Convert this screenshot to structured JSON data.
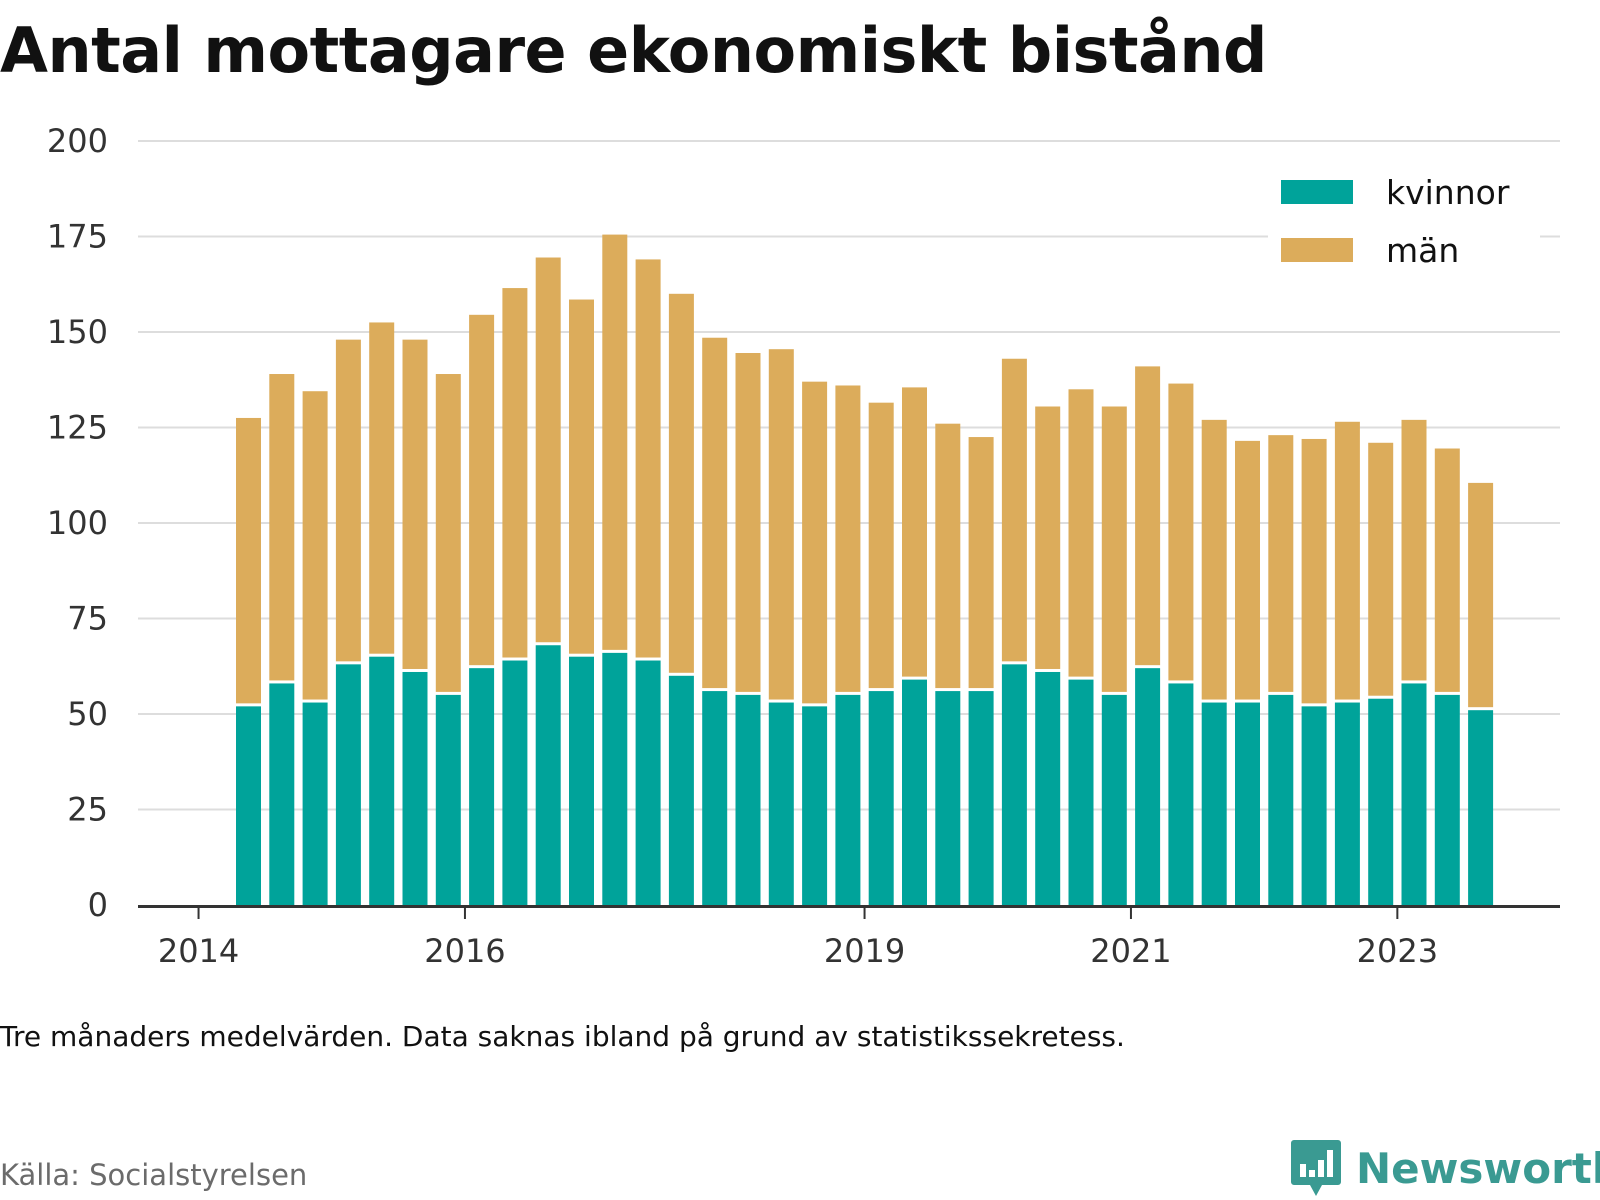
{
  "title": "Antal mottagare ekonomiskt bistånd",
  "note": "Tre månaders medelvärden. Data saknas ibland på grund av statistikssekretess.",
  "source": "Källa: Socialstyrelsen",
  "brand": "Newsworthy",
  "icons": {
    "brand": "newsworthy-logo-icon"
  },
  "colors": {
    "kvinnor": "#00a39a",
    "man": "#dcac5b",
    "grid": "#dddddd",
    "axis": "#333333",
    "brand": "#3a9a92"
  },
  "chart_data": {
    "type": "bar",
    "stacked": true,
    "ylim": [
      0,
      200
    ],
    "yticks": [
      0,
      25,
      50,
      75,
      100,
      125,
      150,
      175,
      200
    ],
    "xticks": [
      "2014",
      "2016",
      "2019",
      "2021",
      "2023"
    ],
    "xlabel": "",
    "ylabel": "",
    "grid": true,
    "legend_position": "top-right",
    "categories": [
      "2014-Q2",
      "2014-Q3",
      "2014-Q4",
      "2015-Q1",
      "2015-Q2",
      "2015-Q3",
      "2015-Q4",
      "2016-Q1",
      "2016-Q2",
      "2016-Q3",
      "2016-Q4",
      "2017-Q1",
      "2017-Q2",
      "2017-Q3",
      "2017-Q4",
      "2018-Q1",
      "2018-Q2",
      "2018-Q3",
      "2018-Q4",
      "2019-Q1",
      "2019-Q2",
      "2019-Q3",
      "2019-Q4",
      "2020-Q1",
      "2020-Q2",
      "2020-Q3",
      "2020-Q4",
      "2021-Q1",
      "2021-Q2",
      "2021-Q3",
      "2021-Q4",
      "2022-Q1",
      "2022-Q2",
      "2022-Q3",
      "2022-Q4",
      "2023-Q1",
      "2023-Q2",
      "2023-Q3"
    ],
    "series": [
      {
        "name": "kvinnor",
        "values": [
          52,
          58,
          53,
          63,
          65,
          61,
          55,
          62,
          64,
          68,
          65,
          66,
          64,
          60,
          56,
          55,
          53,
          52,
          55,
          56,
          59,
          56,
          56,
          63,
          61,
          59,
          55,
          62,
          58,
          53,
          53,
          55,
          52,
          53,
          54,
          58,
          55,
          51
        ]
      },
      {
        "name": "män",
        "values": [
          75.5,
          81,
          81.5,
          85,
          87.5,
          87,
          84,
          92.5,
          97.5,
          101.5,
          93.5,
          109.5,
          105,
          100,
          92.5,
          89.5,
          92.5,
          85,
          81,
          75.5,
          76.5,
          70,
          66.5,
          80,
          69.5,
          76,
          75.5,
          79,
          78.5,
          74,
          68.5,
          68,
          70,
          73.5,
          67,
          69,
          64.5,
          59.5
        ]
      }
    ]
  }
}
